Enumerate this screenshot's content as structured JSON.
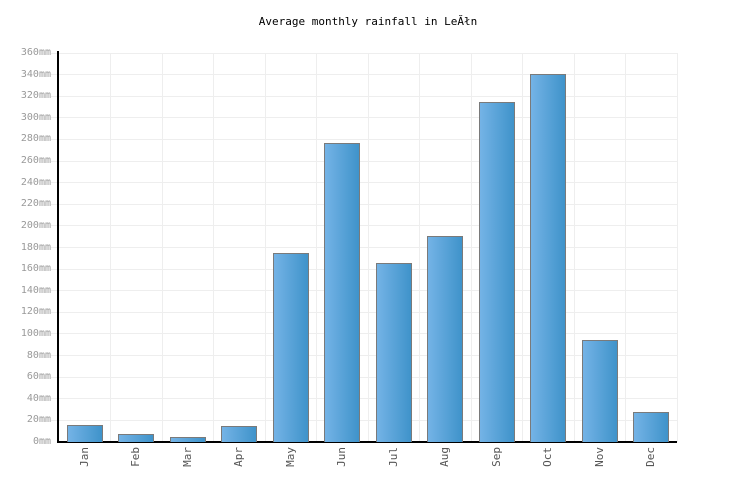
{
  "title": "Average monthly rainfall in LeĂłn",
  "chart_data": {
    "type": "bar",
    "title": "Average monthly rainfall in LeĂłn",
    "categories": [
      "Jan",
      "Feb",
      "Mar",
      "Apr",
      "May",
      "Jun",
      "Jul",
      "Aug",
      "Sep",
      "Oct",
      "Nov",
      "Dec"
    ],
    "values": [
      16,
      7,
      5,
      15,
      175,
      277,
      166,
      191,
      315,
      341,
      94,
      28
    ],
    "unit": "mm",
    "xlabel": "",
    "ylabel": "",
    "ylim": [
      0,
      360
    ],
    "ytick_step": 20,
    "yticks": [
      "0mm",
      "20mm",
      "40mm",
      "60mm",
      "80mm",
      "100mm",
      "120mm",
      "140mm",
      "160mm",
      "180mm",
      "200mm",
      "220mm",
      "240mm",
      "260mm",
      "280mm",
      "300mm",
      "320mm",
      "340mm",
      "360mm"
    ],
    "grid": true,
    "legend": false,
    "x_label_rotation": -90,
    "colors": {
      "bar_gradient_start": "#74b3e6",
      "bar_gradient_end": "#3f93ca",
      "bar_border": "#7a7a7a",
      "grid_line": "#eeeeee",
      "axis_line": "#000000",
      "y_tick_label": "#999999",
      "x_tick_label": "#555555",
      "title_color": "#000000",
      "background": "#ffffff"
    }
  }
}
